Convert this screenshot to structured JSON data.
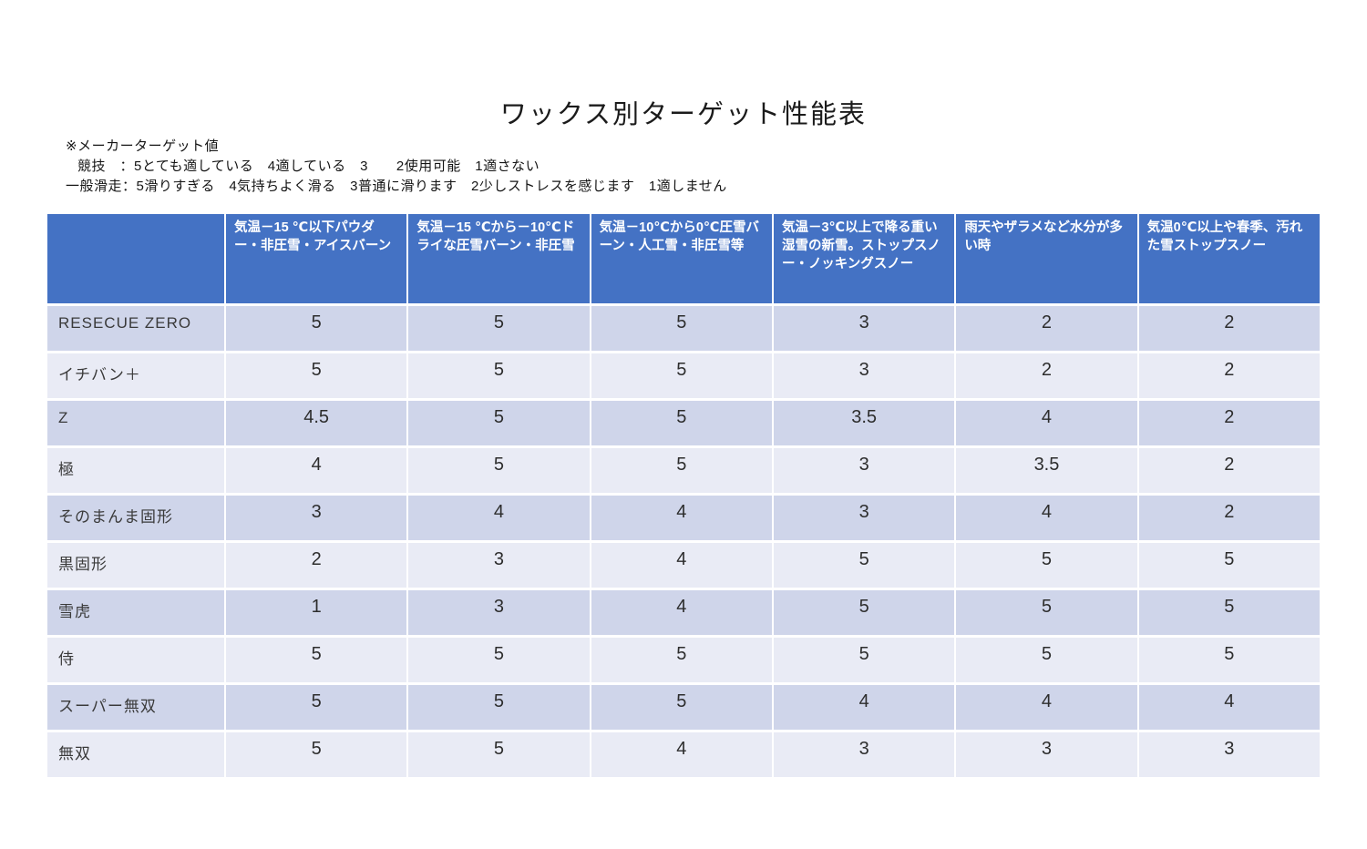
{
  "colors": {
    "header_bg": "#4472C4",
    "header_text": "#FFFFFF",
    "band_dark": "#CFD5EA",
    "band_light": "#E9EBF5"
  },
  "chart_data": {
    "type": "table",
    "title": "ワックス別ターゲット性能表",
    "annotations": [
      "※メーカーターゲット値",
      "競技　：5とても適している　4適している　3　　2使用可能　1適さない",
      "一般滑走：5滑りすぎる　4気持ちよく滑る　3普通に滑ります　2少しストレスを感じます　1適しません"
    ],
    "corner_label": "",
    "columns": [
      "気温－15 ℃以下パウダー・非圧雪・アイスバーン",
      "気温－15 ℃から－10℃ドライな圧雪バーン・非圧雪",
      "気温－10℃から0℃圧雪バーン・人工雪・非圧雪等",
      "気温－3℃以上で降る重い湿雪の新雪。ストップスノー・ノッキングスノー",
      "雨天やザラメなど水分が多い時",
      "気温0℃以上や春季、汚れた雪ストップスノー"
    ],
    "rows": [
      {
        "name": "RESECUE ZERO",
        "values": [
          5,
          5,
          5,
          3,
          2,
          2
        ]
      },
      {
        "name": "イチバン＋",
        "values": [
          5,
          5,
          5,
          3,
          2,
          2
        ]
      },
      {
        "name": "Z",
        "values": [
          4.5,
          5,
          5,
          3.5,
          4,
          2
        ]
      },
      {
        "name": "極",
        "values": [
          4,
          5,
          5,
          3,
          3.5,
          2
        ]
      },
      {
        "name": "そのまんま固形",
        "values": [
          3,
          4,
          4,
          3,
          4,
          2
        ]
      },
      {
        "name": "黒固形",
        "values": [
          2,
          3,
          4,
          5,
          5,
          5
        ]
      },
      {
        "name": "雪虎",
        "values": [
          1,
          3,
          4,
          5,
          5,
          5
        ]
      },
      {
        "name": "侍",
        "values": [
          5,
          5,
          5,
          5,
          5,
          5
        ]
      },
      {
        "name": "スーパー無双",
        "values": [
          5,
          5,
          5,
          4,
          4,
          4
        ]
      },
      {
        "name": "無双",
        "values": [
          5,
          5,
          4,
          3,
          3,
          3
        ]
      }
    ]
  }
}
